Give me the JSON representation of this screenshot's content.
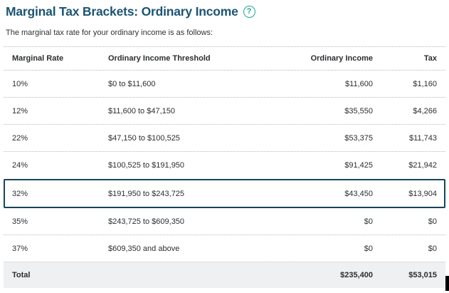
{
  "page": {
    "title": "Marginal Tax Brackets: Ordinary Income",
    "subtitle": "The marginal tax rate for your ordinary income is as follows:",
    "help_icon_glyph": "?"
  },
  "colors": {
    "title_navy": "#1c5572",
    "help_teal": "#23a39b",
    "text": "#2b2e31",
    "divider": "#b5b9bc",
    "total_bg": "#eef0f1",
    "highlight_border": "#16455c"
  },
  "table": {
    "columns": [
      "Marginal Rate",
      "Ordinary Income Threshold",
      "Ordinary Income",
      "Tax"
    ],
    "rows": [
      {
        "rate": "10%",
        "threshold": "$0 to $11,600",
        "income": "$11,600",
        "tax": "$1,160",
        "highlighted": false
      },
      {
        "rate": "12%",
        "threshold": "$11,600 to $47,150",
        "income": "$35,550",
        "tax": "$4,266",
        "highlighted": false
      },
      {
        "rate": "22%",
        "threshold": "$47,150 to $100,525",
        "income": "$53,375",
        "tax": "$11,743",
        "highlighted": false
      },
      {
        "rate": "24%",
        "threshold": "$100,525 to $191,950",
        "income": "$91,425",
        "tax": "$21,942",
        "highlighted": false
      },
      {
        "rate": "32%",
        "threshold": "$191,950 to $243,725",
        "income": "$43,450",
        "tax": "$13,904",
        "highlighted": true
      },
      {
        "rate": "35%",
        "threshold": "$243,725 to $609,350",
        "income": "$0",
        "tax": "$0",
        "highlighted": false
      },
      {
        "rate": "37%",
        "threshold": "$609,350 and above",
        "income": "$0",
        "tax": "$0",
        "highlighted": false
      }
    ],
    "total": {
      "label": "Total",
      "income": "$235,400",
      "tax": "$53,015"
    }
  }
}
